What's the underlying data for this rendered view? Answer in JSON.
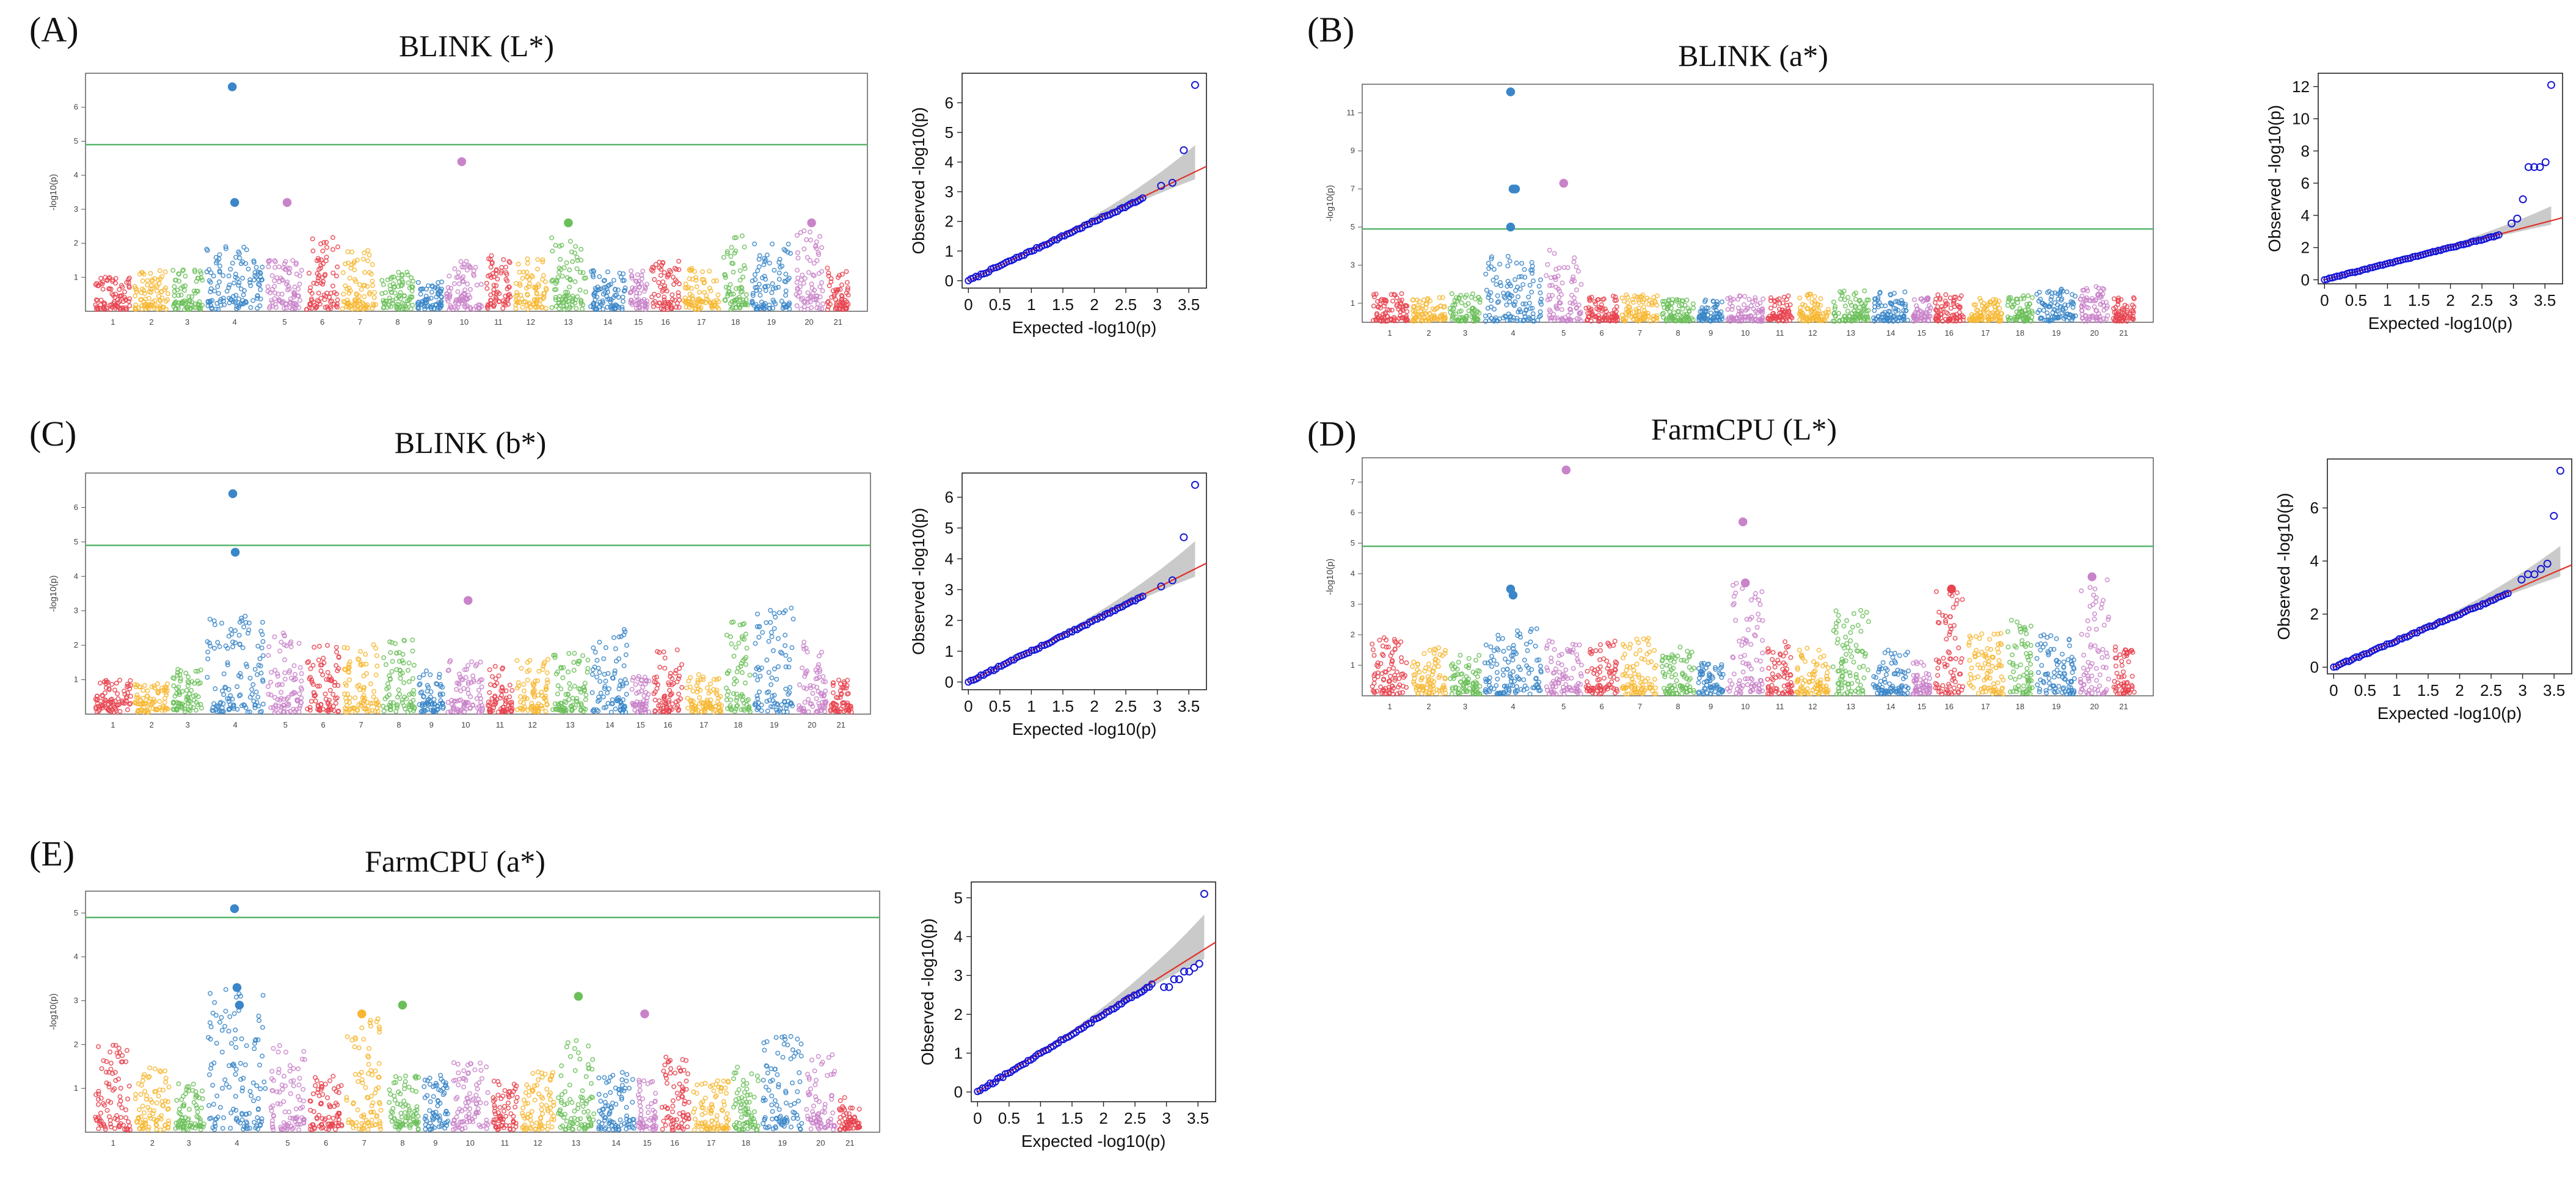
{
  "chart_data": [
    {
      "id": "A",
      "letter": "(A)",
      "type": "scatter",
      "subtype": "manhattan",
      "title": "BLINK (L*)",
      "ylabel": "-log10(p)",
      "ylim": [
        0,
        7
      ],
      "yticks": [
        1,
        2,
        3,
        4,
        5,
        6
      ],
      "threshold": 4.9,
      "chromosomes": [
        "1",
        "2",
        "3",
        "4",
        "5",
        "6",
        "7",
        "8",
        "9",
        "10",
        "11",
        "12",
        "13",
        "14",
        "15",
        "16",
        "17",
        "18",
        "19",
        "20",
        "21"
      ],
      "background_max": [
        1.0,
        1.2,
        1.3,
        2.0,
        1.5,
        2.2,
        1.8,
        1.2,
        0.9,
        1.5,
        1.7,
        1.6,
        2.2,
        1.2,
        1.2,
        1.5,
        1.3,
        2.3,
        2.0,
        2.4,
        1.3
      ],
      "hits": [
        {
          "chr": 4,
          "value": 6.6
        },
        {
          "chr": 4,
          "value": 3.2
        },
        {
          "chr": 5,
          "value": 3.2
        },
        {
          "chr": 10,
          "value": 4.4
        },
        {
          "chr": 13,
          "value": 2.6
        },
        {
          "chr": 20,
          "value": 2.6
        }
      ],
      "qq": {
        "xlabel": "Expected -log10(p)",
        "ylabel": "Observed -log10(p)",
        "xmax": 3.6,
        "ymax": 6.6,
        "xticks": [
          0,
          0.5,
          1,
          1.5,
          2,
          2.5,
          3,
          3.5
        ],
        "yticks": [
          0,
          1,
          2,
          3,
          4,
          5,
          6
        ],
        "tail": [
          3.2,
          3.3,
          4.4,
          6.6
        ]
      }
    },
    {
      "id": "B",
      "letter": "(B)",
      "type": "scatter",
      "subtype": "manhattan",
      "title": "BLINK (a*)",
      "ylabel": "-log10(p)",
      "ylim": [
        0,
        12.5
      ],
      "yticks": [
        1,
        3,
        5,
        7,
        9,
        11
      ],
      "threshold": 4.9,
      "chromosomes": [
        "1",
        "2",
        "3",
        "4",
        "5",
        "6",
        "7",
        "8",
        "9",
        "10",
        "11",
        "12",
        "13",
        "14",
        "15",
        "16",
        "17",
        "18",
        "19",
        "20",
        "21"
      ],
      "background_max": [
        1.6,
        1.3,
        1.5,
        3.5,
        3.8,
        1.4,
        1.5,
        1.2,
        1.2,
        1.4,
        1.4,
        1.5,
        1.7,
        1.6,
        1.3,
        1.5,
        1.3,
        1.4,
        1.8,
        2.0,
        1.3
      ],
      "hits": [
        {
          "chr": 4,
          "value": 12.1
        },
        {
          "chr": 4,
          "value": 7.0
        },
        {
          "chr": 4,
          "value": 7.0
        },
        {
          "chr": 4,
          "value": 5.0
        },
        {
          "chr": 5,
          "value": 7.3
        }
      ],
      "qq": {
        "xlabel": "Expected -log10(p)",
        "ylabel": "Observed -log10(p)",
        "xmax": 3.6,
        "ymax": 12.1,
        "xticks": [
          0,
          0.5,
          1,
          1.5,
          2,
          2.5,
          3,
          3.5
        ],
        "yticks": [
          0,
          2,
          4,
          6,
          8,
          10,
          12
        ],
        "tail": [
          3.5,
          3.8,
          5.0,
          7.0,
          7.0,
          7.0,
          7.3,
          12.1
        ]
      }
    },
    {
      "id": "C",
      "letter": "(C)",
      "type": "scatter",
      "subtype": "manhattan",
      "title": "BLINK (b*)",
      "ylabel": "-log10(p)",
      "ylim": [
        0,
        7
      ],
      "yticks": [
        1,
        2,
        3,
        4,
        5,
        6
      ],
      "threshold": 4.9,
      "chromosomes": [
        "1",
        "2",
        "3",
        "4",
        "5",
        "6",
        "7",
        "8",
        "9",
        "10",
        "11",
        "12",
        "13",
        "14",
        "15",
        "16",
        "17",
        "18",
        "19",
        "20",
        "21"
      ],
      "background_max": [
        1.0,
        0.9,
        1.3,
        2.9,
        2.5,
        2.0,
        2.1,
        2.2,
        1.3,
        1.7,
        1.4,
        1.6,
        1.8,
        2.5,
        1.1,
        1.9,
        1.2,
        2.7,
        3.1,
        2.2,
        1.0
      ],
      "hits": [
        {
          "chr": 4,
          "value": 6.4
        },
        {
          "chr": 4,
          "value": 4.7
        },
        {
          "chr": 10,
          "value": 3.3
        }
      ],
      "qq": {
        "xlabel": "Expected -log10(p)",
        "ylabel": "Observed -log10(p)",
        "xmax": 3.6,
        "ymax": 6.4,
        "xticks": [
          0,
          0.5,
          1,
          1.5,
          2,
          2.5,
          3,
          3.5
        ],
        "yticks": [
          0,
          1,
          2,
          3,
          4,
          5,
          6
        ],
        "tail": [
          3.1,
          3.3,
          4.7,
          6.4
        ]
      }
    },
    {
      "id": "D",
      "letter": "(D)",
      "type": "scatter",
      "subtype": "manhattan",
      "title": "FarmCPU (L*)",
      "ylabel": "-log10(p)",
      "ylim": [
        0,
        7.8
      ],
      "yticks": [
        1,
        2,
        3,
        4,
        5,
        6,
        7
      ],
      "threshold": 4.9,
      "chromosomes": [
        "1",
        "2",
        "3",
        "4",
        "5",
        "6",
        "7",
        "8",
        "9",
        "10",
        "11",
        "12",
        "13",
        "14",
        "15",
        "16",
        "17",
        "18",
        "19",
        "20",
        "21"
      ],
      "background_max": [
        2.0,
        1.6,
        1.4,
        2.2,
        1.8,
        1.8,
        1.9,
        1.6,
        1.1,
        3.7,
        1.8,
        1.7,
        2.8,
        1.5,
        1.2,
        3.5,
        2.1,
        2.6,
        2.0,
        3.9,
        1.6
      ],
      "hits": [
        {
          "chr": 4,
          "value": 3.5
        },
        {
          "chr": 4,
          "value": 3.3
        },
        {
          "chr": 5,
          "value": 7.4
        },
        {
          "chr": 10,
          "value": 5.7
        },
        {
          "chr": 10,
          "value": 3.7
        },
        {
          "chr": 16,
          "value": 3.5
        },
        {
          "chr": 20,
          "value": 3.9
        }
      ],
      "qq": {
        "xlabel": "Expected -log10(p)",
        "ylabel": "Observed -log10(p)",
        "xmax": 3.6,
        "ymax": 7.4,
        "xticks": [
          0,
          0.5,
          1,
          1.5,
          2,
          2.5,
          3,
          3.5
        ],
        "yticks": [
          0,
          2,
          4,
          6
        ],
        "tail": [
          3.3,
          3.5,
          3.5,
          3.7,
          3.9,
          5.7,
          7.4
        ]
      }
    },
    {
      "id": "E",
      "letter": "(E)",
      "type": "scatter",
      "subtype": "manhattan",
      "title": "FarmCPU (a*)",
      "ylabel": "-log10(p)",
      "ylim": [
        0,
        5.5
      ],
      "yticks": [
        1,
        2,
        3,
        4,
        5
      ],
      "threshold": 4.9,
      "chromosomes": [
        "1",
        "2",
        "3",
        "4",
        "5",
        "6",
        "7",
        "8",
        "9",
        "10",
        "11",
        "12",
        "13",
        "14",
        "15",
        "16",
        "17",
        "18",
        "19",
        "20",
        "21"
      ],
      "background_max": [
        2.0,
        1.5,
        1.2,
        3.3,
        2.0,
        1.3,
        2.7,
        1.3,
        1.3,
        1.6,
        1.2,
        1.4,
        2.1,
        1.4,
        1.3,
        1.8,
        1.2,
        1.5,
        2.2,
        1.8,
        0.8
      ],
      "hits": [
        {
          "chr": 4,
          "value": 5.1
        },
        {
          "chr": 4,
          "value": 3.3
        },
        {
          "chr": 4,
          "value": 2.9
        },
        {
          "chr": 7,
          "value": 2.7
        },
        {
          "chr": 8,
          "value": 2.9
        },
        {
          "chr": 13,
          "value": 3.1
        },
        {
          "chr": 15,
          "value": 2.7
        }
      ],
      "qq": {
        "xlabel": "Expected -log10(p)",
        "ylabel": "Observed -log10(p)",
        "xmax": 3.6,
        "ymax": 5.1,
        "xticks": [
          0,
          0.5,
          1,
          1.5,
          2,
          2.5,
          3,
          3.5
        ],
        "yticks": [
          0,
          1,
          2,
          3,
          4,
          5
        ],
        "tail": [
          2.7,
          2.7,
          2.9,
          2.9,
          3.1,
          3.1,
          3.2,
          3.3,
          5.1
        ]
      }
    }
  ],
  "palette": [
    "#e8434f",
    "#f7b731",
    "#6bbf59",
    "#3a86c8",
    "#c983c9"
  ]
}
